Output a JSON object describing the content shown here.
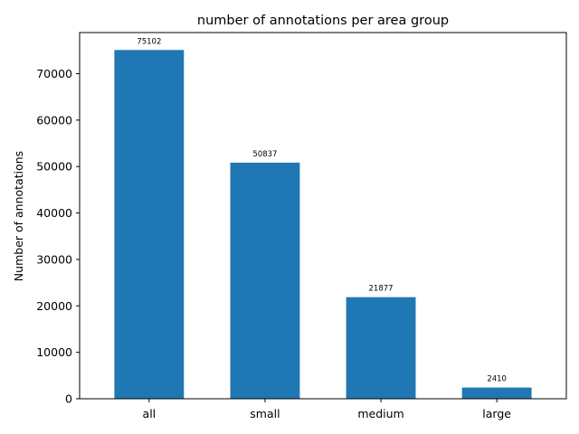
{
  "chart_data": {
    "type": "bar",
    "title": "number of annotations per area group",
    "xlabel": "",
    "ylabel": "Number of annotations",
    "categories": [
      "all",
      "small",
      "medium",
      "large"
    ],
    "values": [
      75102,
      50837,
      21877,
      2410
    ],
    "data_labels": [
      "75102",
      "50837",
      "21877",
      "2410"
    ],
    "ylim": [
      0,
      78856
    ],
    "yticks": [
      0,
      10000,
      20000,
      30000,
      40000,
      50000,
      60000,
      70000
    ],
    "ytick_labels": [
      "0",
      "10000",
      "20000",
      "30000",
      "40000",
      "50000",
      "60000",
      "70000"
    ],
    "bar_color": "#1f77b4",
    "grid": false,
    "legend": "none"
  }
}
